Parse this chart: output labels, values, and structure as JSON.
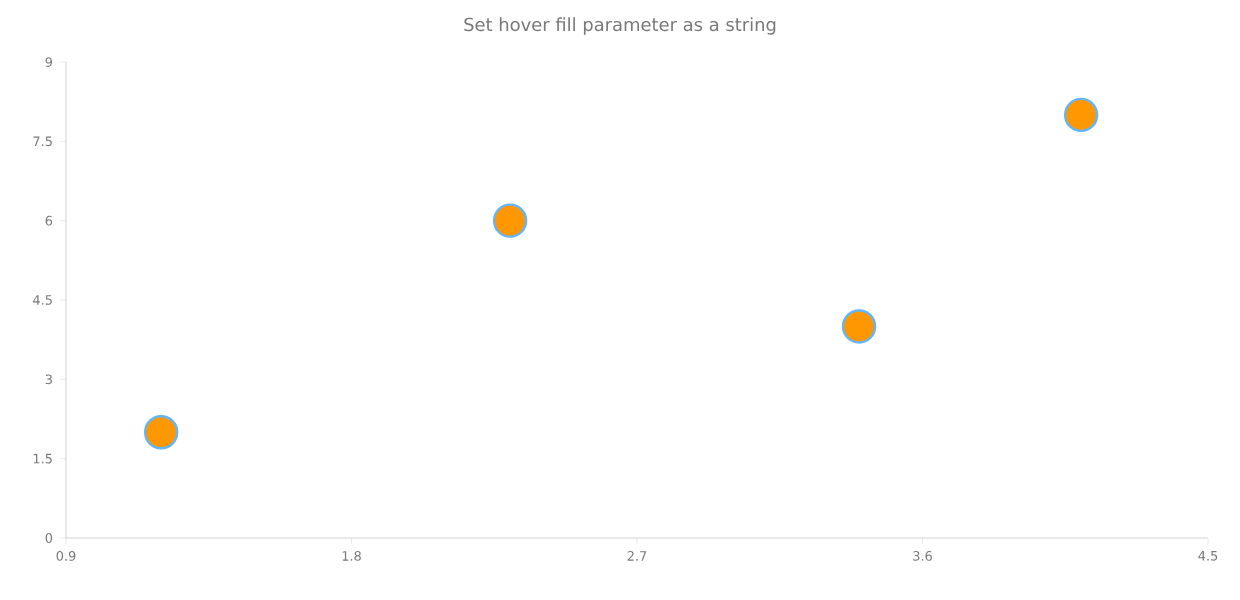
{
  "chart_data": {
    "type": "scatter",
    "title": "Set hover fill parameter as a string",
    "x": [
      1.2,
      2.3,
      3.4,
      4.1
    ],
    "values": [
      2,
      6,
      4,
      8
    ],
    "color": "#ff9800",
    "xlim": [
      0.9,
      4.5
    ],
    "xticks": [
      0.9,
      1.8,
      2.7,
      3.6,
      4.5
    ],
    "ylim": [
      0,
      9
    ],
    "yticks": [
      0,
      1.5,
      3,
      4.5,
      6,
      7.5,
      9
    ],
    "grid": false
  }
}
